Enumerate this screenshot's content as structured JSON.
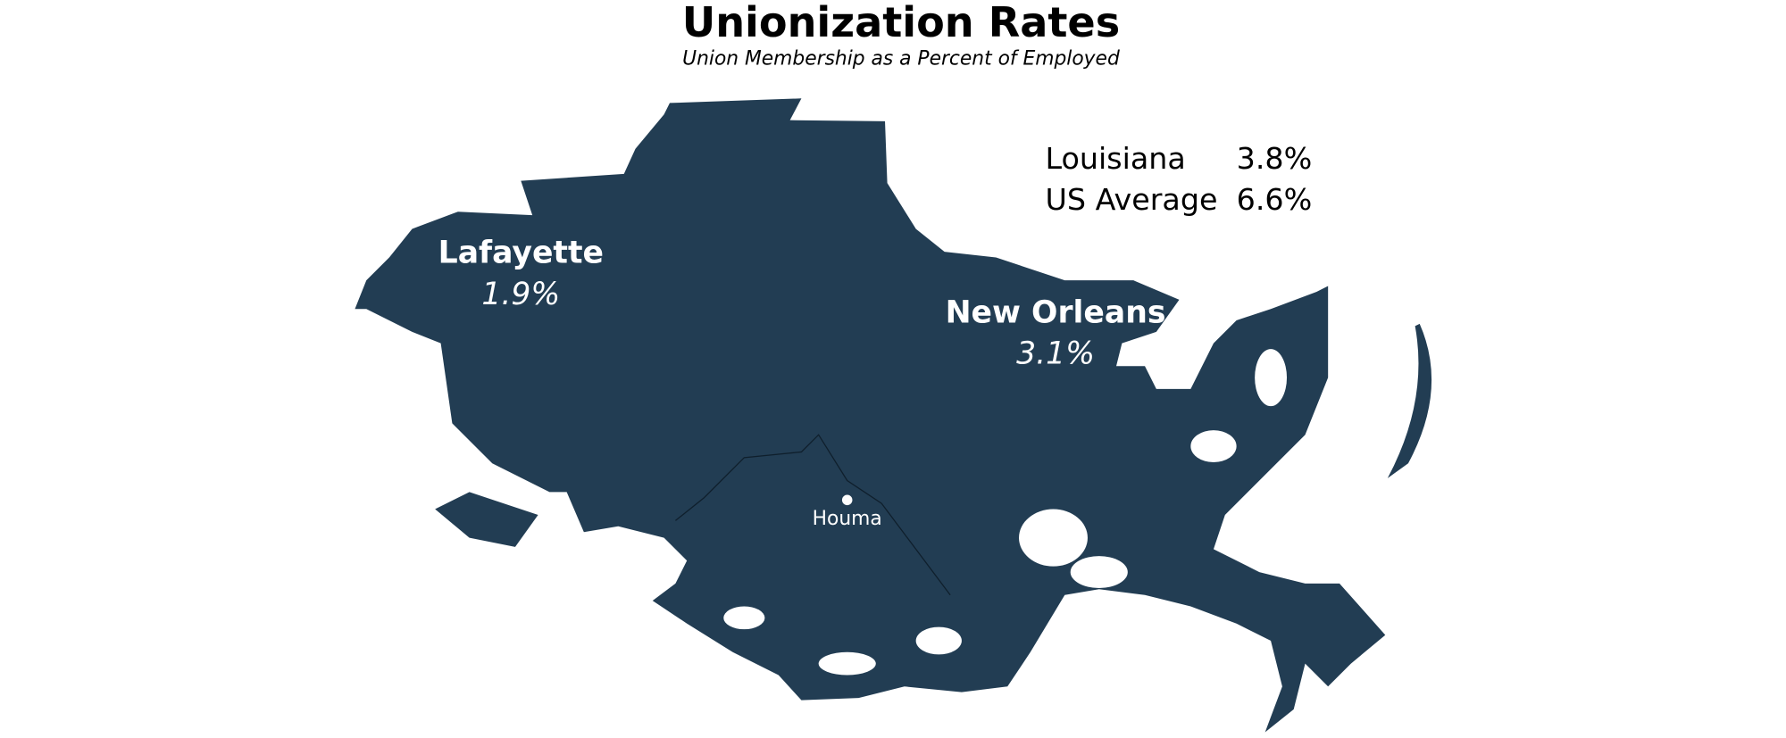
{
  "header": {
    "title": "Unionization Rates",
    "subtitle": "Union Membership as a Percent of Employed"
  },
  "summary": [
    {
      "label": "Louisiana",
      "value": "3.8%"
    },
    {
      "label": "US Average",
      "value": "6.6%"
    }
  ],
  "regions": [
    {
      "name": "Lafayette",
      "value": "1.9%"
    },
    {
      "name": "New Orleans",
      "value": "3.1%"
    }
  ],
  "places": [
    {
      "label": "Houma"
    }
  ]
}
